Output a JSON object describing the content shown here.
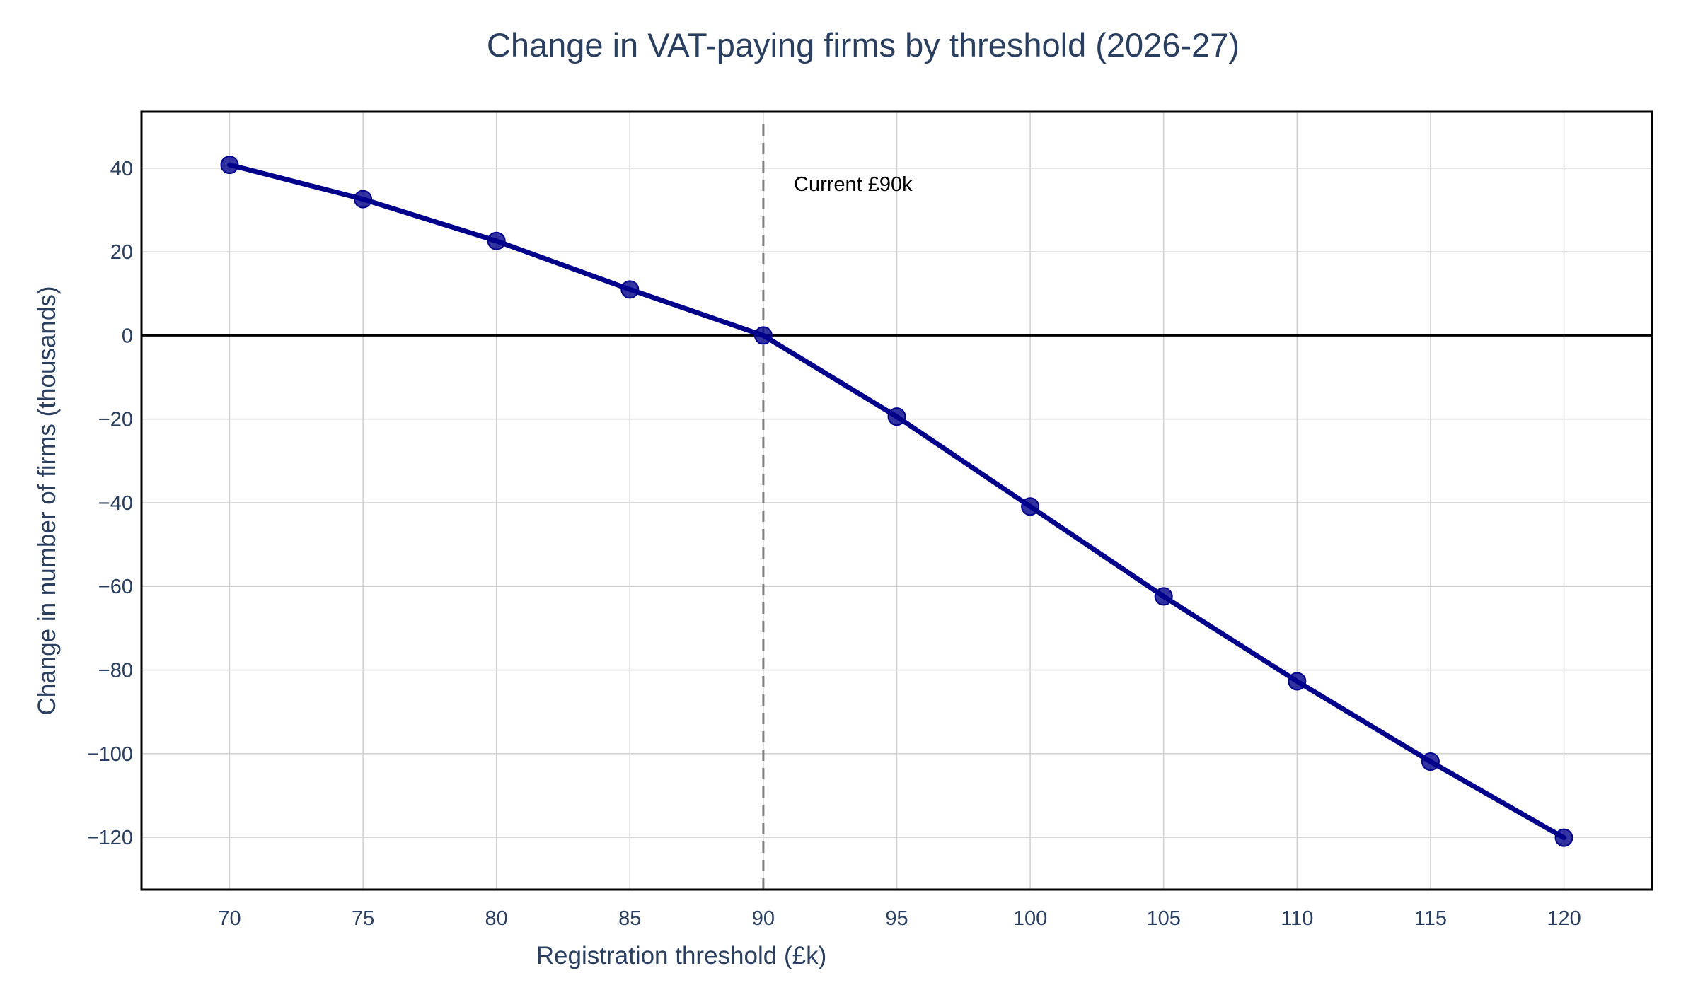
{
  "chart_data": {
    "type": "line",
    "title": "Change in VAT-paying firms by threshold (2026-27)",
    "xlabel": "Registration threshold (£k)",
    "ylabel": "Change in number of firms (thousands)",
    "x": [
      70,
      75,
      80,
      85,
      90,
      95,
      100,
      105,
      110,
      115,
      120
    ],
    "series": [
      {
        "values": [
          40.8,
          32.6,
          22.6,
          11.0,
          0.0,
          -19.4,
          -40.9,
          -62.4,
          -82.7,
          -101.9,
          -120.1
        ],
        "color": "#00008b"
      }
    ],
    "xlim": [
      66.7,
      123.3
    ],
    "ylim": [
      -132.5,
      53.5
    ],
    "xticks": [
      70,
      75,
      80,
      85,
      90,
      95,
      100,
      105,
      110,
      115,
      120
    ],
    "xtick_labels": [
      "70",
      "75",
      "80",
      "85",
      "90",
      "95",
      "100",
      "105",
      "110",
      "115",
      "120"
    ],
    "yticks": [
      40,
      20,
      0,
      -20,
      -40,
      -60,
      -80,
      -100,
      -120
    ],
    "ytick_labels": [
      "40",
      "20",
      "0",
      "−20",
      "−40",
      "−60",
      "−80",
      "−100",
      "−120"
    ],
    "grid": true,
    "reference_line": {
      "x": 90,
      "style": "dashed",
      "color": "#7f7f7f",
      "label": "Current £90k"
    },
    "zero_line": true
  }
}
